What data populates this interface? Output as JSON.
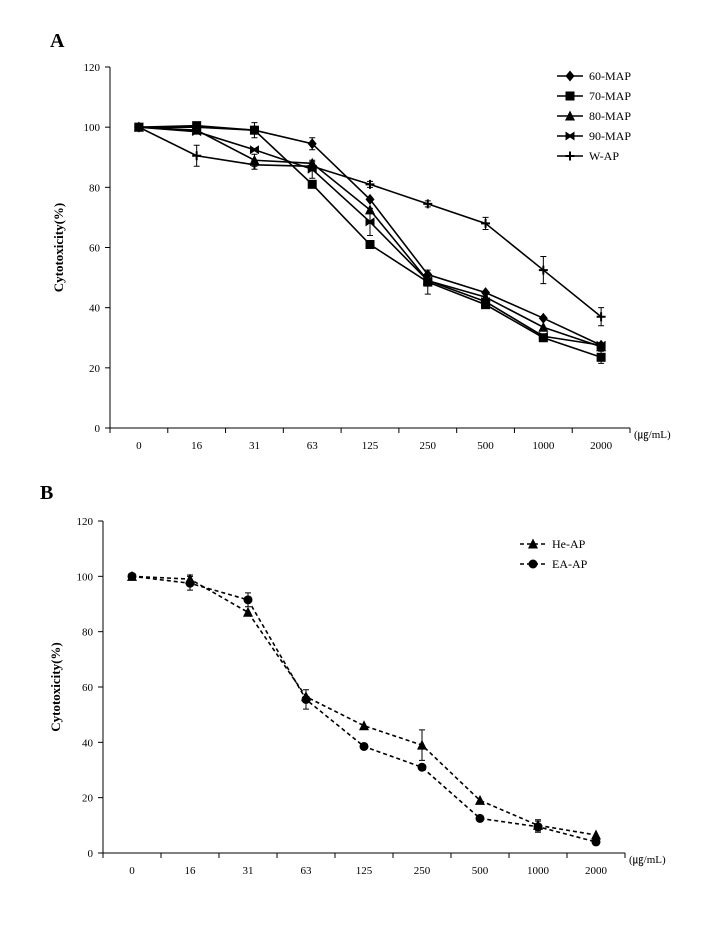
{
  "chart_data": [
    {
      "panel_label": "A",
      "type": "line",
      "categories": [
        "0",
        "16",
        "31",
        "63",
        "125",
        "250",
        "500",
        "1000",
        "2000"
      ],
      "unit_label": "(㎍/mL)",
      "ylabel": "Cytotoxicity(%)",
      "xlabel": "",
      "ylim": [
        0,
        120
      ],
      "yticks": [
        0,
        20,
        40,
        60,
        80,
        100,
        120
      ],
      "grid": false,
      "legend_position": "top-right",
      "series": [
        {
          "name": "60-MAP",
          "marker": "diamond",
          "dash": "solid",
          "color": "#000000",
          "values": [
            100,
            100,
            99,
            94.5,
            76,
            51,
            45,
            36.5,
            27.5
          ],
          "errors": [
            0,
            0,
            0,
            2,
            0,
            0,
            0,
            0,
            0
          ]
        },
        {
          "name": "70-MAP",
          "marker": "square",
          "dash": "solid",
          "color": "#000000",
          "values": [
            100,
            100.5,
            99,
            81,
            61,
            48.5,
            41,
            30,
            23.5
          ],
          "errors": [
            0,
            0,
            2.5,
            0,
            0,
            4,
            0,
            0,
            2
          ]
        },
        {
          "name": "80-MAP",
          "marker": "triangle",
          "dash": "solid",
          "color": "#000000",
          "values": [
            100,
            99,
            89,
            88,
            72.5,
            49,
            43.5,
            33.5,
            27
          ],
          "errors": [
            0,
            0,
            2,
            0,
            0,
            0,
            0,
            0,
            0
          ]
        },
        {
          "name": "90-MAP",
          "marker": "bowtie",
          "dash": "solid",
          "color": "#000000",
          "values": [
            100,
            98.5,
            92.5,
            86,
            68.5,
            49,
            42,
            30.5,
            27.5
          ],
          "errors": [
            0,
            0,
            0,
            3,
            4.5,
            0,
            0,
            0,
            0
          ]
        },
        {
          "name": "W-AP",
          "marker": "plus",
          "dash": "solid",
          "color": "#000000",
          "values": [
            100,
            90.5,
            87.5,
            87,
            81,
            74.5,
            68,
            52.5,
            37
          ],
          "errors": [
            0,
            3.5,
            1.5,
            1.5,
            1,
            1,
            2,
            4.5,
            3
          ]
        }
      ]
    },
    {
      "panel_label": "B",
      "type": "line",
      "categories": [
        "0",
        "16",
        "31",
        "63",
        "125",
        "250",
        "500",
        "1000",
        "2000"
      ],
      "unit_label": "(㎍/mL)",
      "ylabel": "Cytotoxicity(%)",
      "xlabel": "",
      "ylim": [
        0,
        120
      ],
      "yticks": [
        0,
        20,
        40,
        60,
        80,
        100,
        120
      ],
      "grid": false,
      "legend_position": "top-right",
      "series": [
        {
          "name": "He-AP",
          "marker": "triangle",
          "dash": "dashed",
          "color": "#000000",
          "values": [
            100,
            99,
            87,
            56.5,
            46,
            39,
            19,
            10,
            6.5
          ],
          "errors": [
            0,
            1.5,
            0,
            0,
            0,
            5.5,
            0,
            2,
            0
          ]
        },
        {
          "name": "EA-AP",
          "marker": "circle",
          "dash": "dashed",
          "color": "#000000",
          "values": [
            100,
            97.5,
            91.5,
            55.5,
            38.5,
            31,
            12.5,
            9.5,
            4
          ],
          "errors": [
            0,
            2.5,
            2.5,
            3.5,
            0,
            0,
            0,
            2,
            0
          ]
        }
      ]
    }
  ]
}
